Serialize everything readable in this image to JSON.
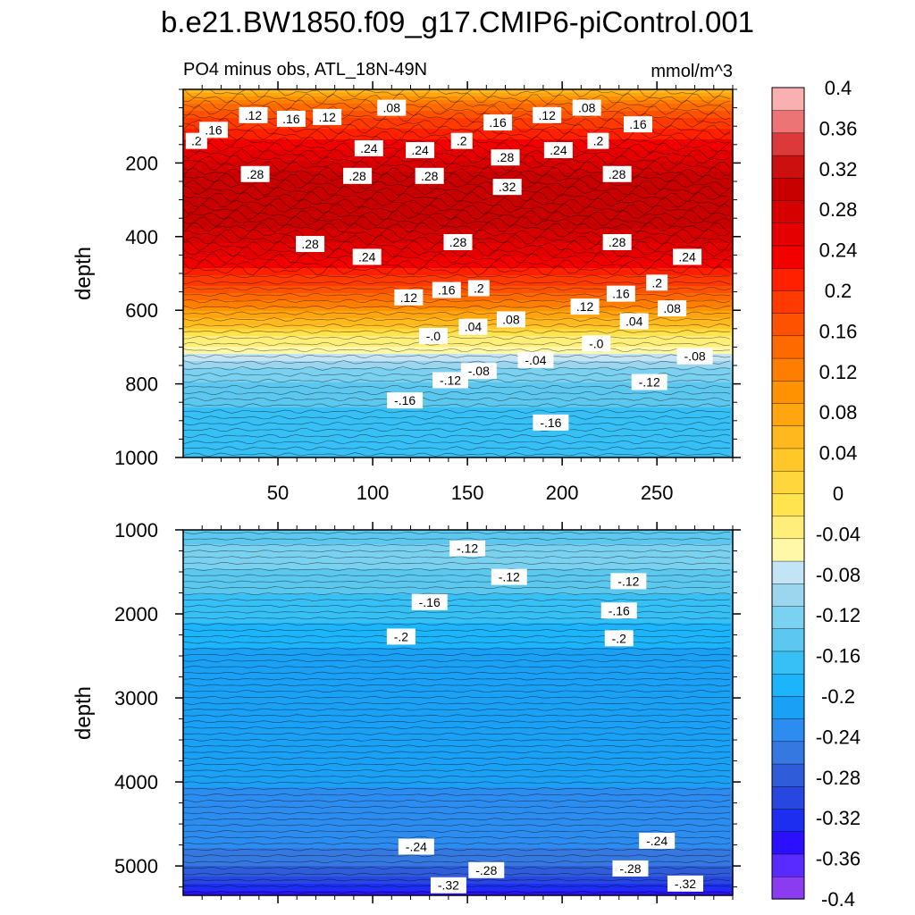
{
  "title": "b.e21.BW1850.f09_g17.CMIP6-piControl.001",
  "chart_data": {
    "type": "contour",
    "units": "mmol/m^3",
    "xlim": [
      0,
      290
    ],
    "x_ticks": [
      50,
      100,
      150,
      200,
      250
    ],
    "panels": [
      {
        "name": "upper",
        "subtitle": "PO4 minus obs, ATL_18N-49N",
        "ylabel": "depth",
        "ylim": [
          0,
          1000
        ],
        "y_ticks": [
          200,
          400,
          600,
          800,
          1000
        ],
        "x_tick_labels_shown": true,
        "layers": [
          {
            "depth": 0,
            "value": 0.04
          },
          {
            "depth": 20,
            "value": 0.08
          },
          {
            "depth": 45,
            "value": 0.14
          },
          {
            "depth": 80,
            "value": 0.18
          },
          {
            "depth": 130,
            "value": 0.22
          },
          {
            "depth": 180,
            "value": 0.26
          },
          {
            "depth": 230,
            "value": 0.29
          },
          {
            "depth": 330,
            "value": 0.31
          },
          {
            "depth": 400,
            "value": 0.28
          },
          {
            "depth": 460,
            "value": 0.24
          },
          {
            "depth": 520,
            "value": 0.19
          },
          {
            "depth": 560,
            "value": 0.15
          },
          {
            "depth": 590,
            "value": 0.11
          },
          {
            "depth": 620,
            "value": 0.07
          },
          {
            "depth": 645,
            "value": 0.03
          },
          {
            "depth": 670,
            "value": -0.02
          },
          {
            "depth": 700,
            "value": -0.05
          },
          {
            "depth": 735,
            "value": -0.09
          },
          {
            "depth": 770,
            "value": -0.12
          },
          {
            "depth": 810,
            "value": -0.145
          },
          {
            "depth": 860,
            "value": -0.155
          },
          {
            "depth": 960,
            "value": -0.165
          },
          {
            "depth": 1000,
            "value": -0.165
          }
        ],
        "contour_labels": [
          {
            "x": 7,
            "depth": 140,
            "text": ".2"
          },
          {
            "x": 16,
            "depth": 110,
            "text": ".16"
          },
          {
            "x": 37,
            "depth": 70,
            "text": ".12"
          },
          {
            "x": 57,
            "depth": 80,
            "text": ".16"
          },
          {
            "x": 76,
            "depth": 75,
            "text": ".12"
          },
          {
            "x": 110,
            "depth": 50,
            "text": ".08"
          },
          {
            "x": 98,
            "depth": 160,
            "text": ".24"
          },
          {
            "x": 125,
            "depth": 165,
            "text": ".24"
          },
          {
            "x": 147,
            "depth": 140,
            "text": ".2"
          },
          {
            "x": 166,
            "depth": 90,
            "text": ".16"
          },
          {
            "x": 192,
            "depth": 70,
            "text": ".12"
          },
          {
            "x": 213,
            "depth": 50,
            "text": ".08"
          },
          {
            "x": 219,
            "depth": 140,
            "text": ".2"
          },
          {
            "x": 240,
            "depth": 95,
            "text": ".16"
          },
          {
            "x": 170,
            "depth": 185,
            "text": ".28"
          },
          {
            "x": 198,
            "depth": 165,
            "text": ".24"
          },
          {
            "x": 38,
            "depth": 230,
            "text": ".28"
          },
          {
            "x": 92,
            "depth": 235,
            "text": ".28"
          },
          {
            "x": 130,
            "depth": 235,
            "text": ".28"
          },
          {
            "x": 171,
            "depth": 265,
            "text": ".32"
          },
          {
            "x": 229,
            "depth": 230,
            "text": ".28"
          },
          {
            "x": 67,
            "depth": 420,
            "text": ".28"
          },
          {
            "x": 97,
            "depth": 455,
            "text": ".24"
          },
          {
            "x": 145,
            "depth": 415,
            "text": ".28"
          },
          {
            "x": 229,
            "depth": 415,
            "text": ".28"
          },
          {
            "x": 266,
            "depth": 455,
            "text": ".24"
          },
          {
            "x": 119,
            "depth": 565,
            "text": ".12"
          },
          {
            "x": 139,
            "depth": 545,
            "text": ".16"
          },
          {
            "x": 156,
            "depth": 540,
            "text": ".2"
          },
          {
            "x": 212,
            "depth": 590,
            "text": ".12"
          },
          {
            "x": 231,
            "depth": 555,
            "text": ".16"
          },
          {
            "x": 250,
            "depth": 525,
            "text": ".2"
          },
          {
            "x": 258,
            "depth": 595,
            "text": ".08"
          },
          {
            "x": 132,
            "depth": 670,
            "text": "-.0"
          },
          {
            "x": 153,
            "depth": 645,
            "text": ".04"
          },
          {
            "x": 173,
            "depth": 625,
            "text": ".08"
          },
          {
            "x": 218,
            "depth": 690,
            "text": "-.0"
          },
          {
            "x": 238,
            "depth": 630,
            "text": ".04"
          },
          {
            "x": 186,
            "depth": 735,
            "text": "-.04"
          },
          {
            "x": 156,
            "depth": 765,
            "text": "-.08"
          },
          {
            "x": 141,
            "depth": 790,
            "text": "-.12"
          },
          {
            "x": 270,
            "depth": 725,
            "text": "-.08"
          },
          {
            "x": 246,
            "depth": 795,
            "text": "-.12"
          },
          {
            "x": 117,
            "depth": 845,
            "text": "-.16"
          },
          {
            "x": 194,
            "depth": 905,
            "text": "-.16"
          }
        ]
      },
      {
        "name": "lower",
        "subtitle": "",
        "ylabel": "depth",
        "ylim": [
          1000,
          5350
        ],
        "y_ticks": [
          1000,
          2000,
          3000,
          4000,
          5000
        ],
        "x_tick_labels_shown": false,
        "layers": [
          {
            "depth": 1000,
            "value": -0.15
          },
          {
            "depth": 1300,
            "value": -0.12
          },
          {
            "depth": 1650,
            "value": -0.15
          },
          {
            "depth": 2000,
            "value": -0.17
          },
          {
            "depth": 2300,
            "value": -0.19
          },
          {
            "depth": 2550,
            "value": -0.21
          },
          {
            "depth": 3900,
            "value": -0.22
          },
          {
            "depth": 4600,
            "value": -0.23
          },
          {
            "depth": 4850,
            "value": -0.25
          },
          {
            "depth": 5050,
            "value": -0.27
          },
          {
            "depth": 5200,
            "value": -0.3
          },
          {
            "depth": 5280,
            "value": -0.33
          },
          {
            "depth": 5350,
            "value": -0.36
          }
        ],
        "contour_labels": [
          {
            "x": 150,
            "depth": 1220,
            "text": "-.12"
          },
          {
            "x": 172,
            "depth": 1560,
            "text": "-.12"
          },
          {
            "x": 235,
            "depth": 1610,
            "text": "-.12"
          },
          {
            "x": 130,
            "depth": 1860,
            "text": "-.16"
          },
          {
            "x": 230,
            "depth": 1960,
            "text": "-.16"
          },
          {
            "x": 115,
            "depth": 2270,
            "text": "-.2"
          },
          {
            "x": 230,
            "depth": 2290,
            "text": "-.2"
          },
          {
            "x": 123,
            "depth": 4770,
            "text": "-.24"
          },
          {
            "x": 250,
            "depth": 4700,
            "text": "-.24"
          },
          {
            "x": 160,
            "depth": 5050,
            "text": "-.28"
          },
          {
            "x": 236,
            "depth": 5030,
            "text": "-.28"
          },
          {
            "x": 140,
            "depth": 5230,
            "text": "-.32"
          },
          {
            "x": 265,
            "depth": 5210,
            "text": "-.32"
          }
        ]
      }
    ],
    "colorbar": {
      "units": "mmol/m^3",
      "levels": [
        -0.4,
        -0.36,
        -0.32,
        -0.28,
        -0.24,
        -0.2,
        -0.16,
        -0.12,
        -0.08,
        -0.04,
        0,
        0.04,
        0.08,
        0.12,
        0.16,
        0.2,
        0.24,
        0.28,
        0.32,
        0.36,
        0.4
      ],
      "tick_labels": [
        "-0.4",
        "-0.36",
        "-0.32",
        "-0.28",
        "-0.24",
        "-0.2",
        "-0.16",
        "-0.12",
        "-0.08",
        "-0.04",
        "0",
        "0.04",
        "0.08",
        "0.12",
        "0.16",
        "0.2",
        "0.24",
        "0.28",
        "0.32",
        "0.36",
        "0.4"
      ],
      "colors_bottom_to_top": [
        "#8c3cf0",
        "#5a2bff",
        "#2a10ff",
        "#1d2ef0",
        "#2846e0",
        "#2f5cd8",
        "#3478e0",
        "#2d8cf0",
        "#1aa0f5",
        "#1cb4fa",
        "#36c0f6",
        "#5cc8ef",
        "#7ad2f0",
        "#9cd6ee",
        "#c2e4f4",
        "#fff8a8",
        "#ffef7a",
        "#ffe450",
        "#ffd63c",
        "#ffc828",
        "#ffb81e",
        "#ffa510",
        "#ff9200",
        "#ff7e00",
        "#ff6a00",
        "#ff5200",
        "#ff3a00",
        "#ff2000",
        "#f20000",
        "#e40000",
        "#d60000",
        "#c80000",
        "#cc1010",
        "#dc3a3a",
        "#ec7474",
        "#f8b0b0"
      ]
    }
  }
}
